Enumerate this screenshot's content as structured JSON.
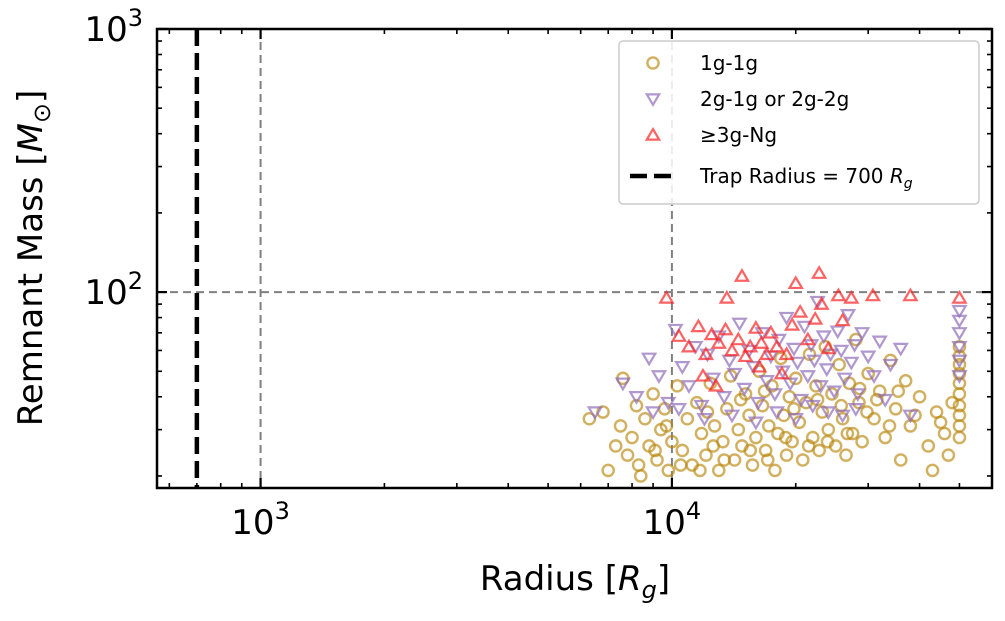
{
  "chart_data": {
    "type": "scatter",
    "x_scale": "log",
    "y_scale": "log",
    "xlim": [
      560,
      60000
    ],
    "ylim": [
      18,
      1000
    ],
    "xlabel": "Radius [R_g]",
    "ylabel": "Remnant Mass [M_⊙]",
    "x_ticks": [
      {
        "value": 1000,
        "base": "10",
        "exp": "3"
      },
      {
        "value": 10000,
        "base": "10",
        "exp": "4"
      }
    ],
    "y_ticks": [
      {
        "value": 100,
        "base": "10",
        "exp": "2"
      },
      {
        "value": 1000,
        "base": "10",
        "exp": "3"
      }
    ],
    "grid": true,
    "legend_position": "top-right",
    "reference_lines": [
      {
        "kind": "vertical",
        "x": 700,
        "label": "Trap Radius = 700 R_g",
        "style": "dashed",
        "color": "#000000"
      }
    ],
    "series": [
      {
        "name": "1g-1g",
        "marker": "circle",
        "color": "#b8860b",
        "points": [
          [
            6300,
            33
          ],
          [
            6800,
            35
          ],
          [
            7000,
            21
          ],
          [
            7300,
            26
          ],
          [
            7500,
            31
          ],
          [
            7600,
            47
          ],
          [
            7800,
            24
          ],
          [
            8000,
            28
          ],
          [
            8200,
            37
          ],
          [
            8400,
            20
          ],
          [
            8600,
            33
          ],
          [
            8800,
            26
          ],
          [
            9000,
            41
          ],
          [
            9200,
            23
          ],
          [
            9400,
            30
          ],
          [
            9600,
            36
          ],
          [
            9800,
            21
          ],
          [
            10000,
            27
          ],
          [
            10300,
            44
          ],
          [
            10600,
            25
          ],
          [
            10900,
            33
          ],
          [
            11200,
            22
          ],
          [
            11500,
            38
          ],
          [
            11800,
            29
          ],
          [
            12100,
            24
          ],
          [
            12400,
            45
          ],
          [
            12700,
            31
          ],
          [
            13000,
            21
          ],
          [
            13300,
            27
          ],
          [
            13600,
            36
          ],
          [
            13900,
            48
          ],
          [
            14200,
            23
          ],
          [
            14500,
            30
          ],
          [
            14800,
            26
          ],
          [
            15100,
            41
          ],
          [
            15400,
            34
          ],
          [
            15700,
            22
          ],
          [
            16000,
            28
          ],
          [
            16300,
            50
          ],
          [
            16600,
            37
          ],
          [
            16900,
            25
          ],
          [
            17200,
            31
          ],
          [
            17500,
            44
          ],
          [
            17800,
            21
          ],
          [
            18100,
            29
          ],
          [
            18400,
            56
          ],
          [
            18700,
            34
          ],
          [
            19000,
            24
          ],
          [
            19300,
            40
          ],
          [
            19600,
            27
          ],
          [
            20000,
            47
          ],
          [
            20400,
            32
          ],
          [
            20800,
            23
          ],
          [
            21200,
            38
          ],
          [
            21600,
            58
          ],
          [
            22000,
            28
          ],
          [
            22400,
            44
          ],
          [
            22800,
            25
          ],
          [
            23200,
            35
          ],
          [
            23600,
            62
          ],
          [
            24000,
            30
          ],
          [
            24500,
            41
          ],
          [
            25000,
            26
          ],
          [
            25500,
            53
          ],
          [
            26000,
            33
          ],
          [
            26500,
            24
          ],
          [
            27000,
            45
          ],
          [
            27500,
            29
          ],
          [
            28000,
            66
          ],
          [
            28500,
            38
          ],
          [
            29000,
            27
          ],
          [
            30000,
            49
          ],
          [
            31000,
            33
          ],
          [
            32000,
            42
          ],
          [
            33000,
            28
          ],
          [
            34000,
            55
          ],
          [
            35000,
            36
          ],
          [
            36000,
            23
          ],
          [
            37000,
            46
          ],
          [
            38000,
            31
          ],
          [
            40000,
            40
          ],
          [
            42000,
            26
          ],
          [
            44000,
            35
          ],
          [
            46000,
            29
          ],
          [
            48000,
            38
          ],
          [
            50000,
            28
          ],
          [
            50000,
            31
          ],
          [
            50000,
            34
          ],
          [
            50000,
            37
          ],
          [
            50000,
            41
          ],
          [
            50000,
            45
          ],
          [
            50000,
            49
          ],
          [
            50000,
            53
          ],
          [
            50000,
            57
          ],
          [
            50000,
            62
          ],
          [
            8300,
            22
          ],
          [
            9100,
            25
          ],
          [
            10500,
            22
          ],
          [
            11700,
            21
          ],
          [
            12600,
            26
          ],
          [
            13400,
            23
          ],
          [
            15500,
            25
          ],
          [
            17100,
            23
          ],
          [
            18900,
            28
          ],
          [
            21500,
            26
          ],
          [
            23900,
            27
          ],
          [
            26700,
            29
          ],
          [
            29800,
            35
          ],
          [
            33800,
            31
          ],
          [
            39000,
            34
          ],
          [
            43000,
            21
          ],
          [
            45000,
            32
          ],
          [
            47000,
            24
          ],
          [
            9700,
            31
          ],
          [
            12200,
            35
          ],
          [
            14700,
            39
          ],
          [
            16800,
            42
          ],
          [
            19800,
            36
          ],
          [
            22600,
            39
          ],
          [
            25800,
            37
          ],
          [
            28600,
            43
          ],
          [
            31500,
            39
          ],
          [
            35500,
            42
          ]
        ]
      },
      {
        "name": "2g-1g or 2g-2g",
        "marker": "triangle-down",
        "color": "#8e6bb8",
        "points": [
          [
            6500,
            35
          ],
          [
            7600,
            45
          ],
          [
            8200,
            40
          ],
          [
            8800,
            56
          ],
          [
            9300,
            48
          ],
          [
            9800,
            38
          ],
          [
            10200,
            72
          ],
          [
            10600,
            52
          ],
          [
            11000,
            44
          ],
          [
            11400,
            62
          ],
          [
            11800,
            37
          ],
          [
            12200,
            58
          ],
          [
            12600,
            47
          ],
          [
            13000,
            68
          ],
          [
            13400,
            40
          ],
          [
            13800,
            55
          ],
          [
            14200,
            49
          ],
          [
            14600,
            76
          ],
          [
            15000,
            43
          ],
          [
            15400,
            60
          ],
          [
            15800,
            52
          ],
          [
            16200,
            38
          ],
          [
            16600,
            70
          ],
          [
            17000,
            46
          ],
          [
            17400,
            57
          ],
          [
            17800,
            41
          ],
          [
            18200,
            66
          ],
          [
            18600,
            50
          ],
          [
            19000,
            80
          ],
          [
            19400,
            45
          ],
          [
            19800,
            61
          ],
          [
            20200,
            54
          ],
          [
            20600,
            39
          ],
          [
            21000,
            74
          ],
          [
            21400,
            48
          ],
          [
            21800,
            63
          ],
          [
            22200,
            55
          ],
          [
            22600,
            92
          ],
          [
            23000,
            44
          ],
          [
            23400,
            68
          ],
          [
            23800,
            51
          ],
          [
            24300,
            58
          ],
          [
            24800,
            42
          ],
          [
            25300,
            71
          ],
          [
            25800,
            60
          ],
          [
            26300,
            47
          ],
          [
            26800,
            82
          ],
          [
            27300,
            54
          ],
          [
            27800,
            63
          ],
          [
            28300,
            41
          ],
          [
            29000,
            70
          ],
          [
            30000,
            57
          ],
          [
            31000,
            48
          ],
          [
            32000,
            65
          ],
          [
            33000,
            39
          ],
          [
            34000,
            53
          ],
          [
            36000,
            61
          ],
          [
            38000,
            34
          ],
          [
            50000,
            48
          ],
          [
            50000,
            55
          ],
          [
            50000,
            62
          ],
          [
            50000,
            70
          ],
          [
            50000,
            78
          ],
          [
            50000,
            85
          ],
          [
            12000,
            33
          ],
          [
            14000,
            34
          ],
          [
            16000,
            32
          ],
          [
            18000,
            35
          ],
          [
            20000,
            33
          ],
          [
            22000,
            37
          ],
          [
            24000,
            35
          ],
          [
            26000,
            34
          ],
          [
            28000,
            36
          ],
          [
            9000,
            35
          ],
          [
            10400,
            36
          ]
        ]
      },
      {
        "name": "≥3g-Ng",
        "marker": "triangle-up",
        "color": "#ff2020",
        "points": [
          [
            9700,
            95
          ],
          [
            10400,
            68
          ],
          [
            11000,
            62
          ],
          [
            11600,
            74
          ],
          [
            12100,
            58
          ],
          [
            12500,
            69
          ],
          [
            13000,
            64
          ],
          [
            13500,
            72
          ],
          [
            14000,
            60
          ],
          [
            14500,
            66
          ],
          [
            15100,
            57
          ],
          [
            15500,
            62
          ],
          [
            16000,
            73
          ],
          [
            16500,
            64
          ],
          [
            17000,
            58
          ],
          [
            17400,
            70
          ],
          [
            18000,
            62
          ],
          [
            19000,
            58
          ],
          [
            19600,
            75
          ],
          [
            20500,
            84
          ],
          [
            21400,
            66
          ],
          [
            22300,
            79
          ],
          [
            23100,
            90
          ],
          [
            24000,
            61
          ],
          [
            25400,
            97
          ],
          [
            27300,
            95
          ],
          [
            30800,
            97
          ],
          [
            38000,
            97
          ],
          [
            13600,
            95
          ],
          [
            14800,
            115
          ],
          [
            20000,
            108
          ],
          [
            22800,
            118
          ],
          [
            50000,
            95
          ],
          [
            11900,
            48
          ],
          [
            12800,
            44
          ],
          [
            16300,
            52
          ],
          [
            18500,
            49
          ],
          [
            26000,
            78
          ]
        ]
      }
    ]
  }
}
